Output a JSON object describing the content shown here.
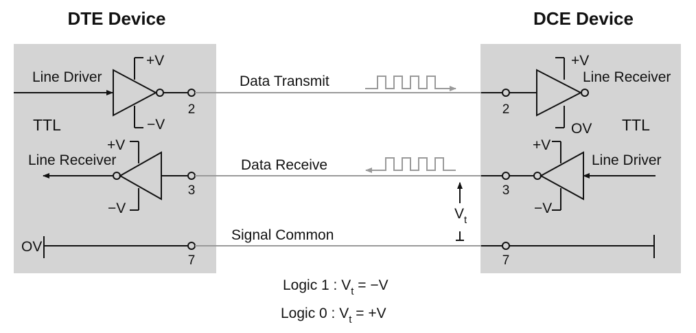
{
  "dte": {
    "title": "DTE Device",
    "line_driver": "Line Driver",
    "line_receiver": "Line Receiver",
    "ttl": "TTL",
    "plus_v_driver": "+V",
    "minus_v_driver": "−V",
    "plus_v_receiver": "+V",
    "minus_v_receiver": "−V",
    "ground": "OV",
    "pin_tx": "2",
    "pin_rx": "3",
    "pin_common": "7"
  },
  "dce": {
    "title": "DCE Device",
    "line_receiver": "Line Receiver",
    "line_driver": "Line Driver",
    "ttl": "TTL",
    "plus_v_receiver": "+V",
    "ground_receiver": "OV",
    "plus_v_driver": "+V",
    "minus_v_driver": "−V",
    "pin_tx": "2",
    "pin_rx": "3",
    "pin_common": "7"
  },
  "lines": {
    "data_transmit": "Data Transmit",
    "data_receive": "Data Receive",
    "signal_common": "Signal Common"
  },
  "vt": {
    "symbol": "V",
    "subscript": "t"
  },
  "logic": {
    "one_prefix": "Logic 1 : V",
    "one_sub": "t",
    "one_suffix": " = −V",
    "zero_prefix": "Logic 0 : V",
    "zero_sub": "t",
    "zero_suffix": " = +V"
  },
  "colors": {
    "panel": "#d4d4d4",
    "line": "#111111",
    "signal": "#999999"
  }
}
